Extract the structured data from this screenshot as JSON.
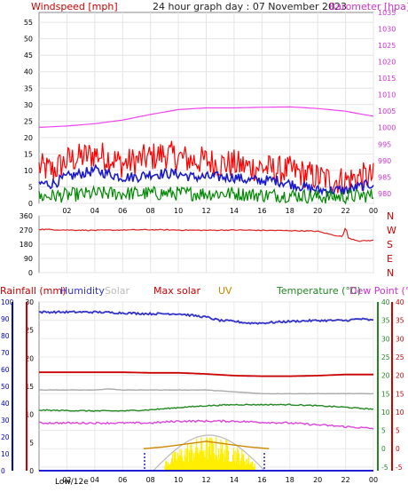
{
  "header": {
    "left_label": "Windspeed [mph]",
    "title": "24 hour graph day : 07 November 2023",
    "right_label": "Barometer [hpa]"
  },
  "legend2": {
    "rainfall": "Rainfall (mm)",
    "humidity": "Humidity",
    "solar": "Solar",
    "max_solar": "Max solar",
    "uv": "UV",
    "temperature": "Temperature (°C)",
    "dew_point": "Dew Point (°C)"
  },
  "footer": {
    "label": "Low/12e"
  },
  "colors": {
    "wind_axis": "#cc0000",
    "baro": "#ee44ee",
    "gust": "#ff0000",
    "average": "#1a1acc",
    "lull": "#008800",
    "direction": "#dd2222",
    "humidity": "#3333cc",
    "max_solar": "#cc0000",
    "solar": "#aaaaaa",
    "uv": "#cc8800",
    "temperature": "#228822",
    "dew_point": "#dd44dd",
    "rain_axis": "#0000cc"
  },
  "chart_data": [
    {
      "type": "line",
      "title": "24 hour graph day : 07 November 2023",
      "ylabel": "Windspeed [mph]",
      "ylabel_right": "Barometer [hpa]",
      "ylim": [
        0,
        58
      ],
      "yticks": [
        0,
        5,
        10,
        15,
        20,
        25,
        30,
        35,
        40,
        45,
        50,
        55
      ],
      "ylim_right": [
        977,
        1035
      ],
      "yticks_right": [
        980,
        985,
        990,
        995,
        1000,
        1005,
        1010,
        1015,
        1020,
        1025,
        1030,
        1035
      ],
      "x_hours": [
        0,
        24
      ],
      "xtick_labels": [
        "02",
        "04",
        "06",
        "08",
        "10",
        "12",
        "14",
        "16",
        "18",
        "20",
        "22",
        "00"
      ],
      "series": [
        {
          "name": "Barometer",
          "axis": "right",
          "x": [
            0,
            2,
            4,
            6,
            8,
            10,
            12,
            14,
            16,
            18,
            19,
            20,
            22,
            23,
            24
          ],
          "y": [
            1000.1,
            1000.5,
            1001.2,
            1002.3,
            1004,
            1005.5,
            1006,
            1006,
            1006.2,
            1006.3,
            1006.1,
            1005.8,
            1005,
            1004.2,
            1003.5
          ]
        },
        {
          "name": "Gust",
          "axis": "left",
          "x": [
            0,
            1,
            2,
            3,
            4,
            5,
            6,
            7,
            8,
            9,
            10,
            11,
            12,
            13,
            14,
            15,
            16,
            17,
            18,
            19,
            20,
            21,
            22,
            23,
            24
          ],
          "y": [
            11,
            10,
            13,
            14,
            15,
            14,
            12,
            13,
            14,
            15,
            14,
            13,
            13,
            12,
            12,
            11,
            11,
            10,
            10,
            9,
            8,
            7,
            7,
            8,
            8
          ]
        },
        {
          "name": "Average",
          "axis": "left",
          "x": [
            0,
            1,
            2,
            3,
            4,
            5,
            6,
            7,
            8,
            9,
            10,
            11,
            12,
            13,
            14,
            15,
            16,
            17,
            18,
            19,
            20,
            21,
            22,
            23,
            24
          ],
          "y": [
            6,
            6,
            8,
            9,
            10,
            9,
            8,
            8,
            9,
            9,
            9,
            8,
            8,
            8,
            8,
            7,
            7,
            7,
            6,
            5,
            4,
            4,
            4,
            5,
            6
          ]
        },
        {
          "name": "Lull",
          "axis": "left",
          "x": [
            0,
            2,
            4,
            6,
            8,
            10,
            12,
            14,
            16,
            18,
            20,
            22,
            24
          ],
          "y": [
            2,
            2.5,
            3,
            3,
            3,
            3,
            3,
            3,
            2.5,
            2.5,
            2,
            2,
            2.5
          ]
        }
      ]
    },
    {
      "type": "line",
      "ylabel": "Wind direction",
      "ylim": [
        0,
        360
      ],
      "yticks": [
        0,
        90,
        180,
        270,
        360
      ],
      "direction_labels": [
        "N",
        "W",
        "S",
        "E",
        "N"
      ],
      "x_hours": [
        0,
        24
      ],
      "series": [
        {
          "name": "Direction",
          "x": [
            0,
            2,
            4,
            6,
            8,
            10,
            12,
            14,
            16,
            18,
            20,
            21,
            21.8,
            22,
            22.2,
            23,
            24
          ],
          "y": [
            275,
            270,
            268,
            270,
            272,
            270,
            268,
            270,
            268,
            266,
            262,
            240,
            228,
            295,
            220,
            200,
            205
          ]
        }
      ]
    },
    {
      "type": "line",
      "ylabel": "Temperature (°C)",
      "ylim": [
        -6,
        40
      ],
      "yticks": [
        -5,
        0,
        5,
        10,
        15,
        20,
        25,
        30,
        35,
        40
      ],
      "ylim_rain": [
        0,
        30
      ],
      "yticks_rain": [
        0,
        5,
        10,
        15,
        20,
        25,
        30
      ],
      "ylim_humidity": [
        0,
        100
      ],
      "yticks_humidity": [
        0,
        10,
        20,
        30,
        40,
        50,
        60,
        70,
        80,
        90,
        100
      ],
      "x_hours": [
        0,
        24
      ],
      "xtick_labels": [
        "02",
        "04",
        "06",
        "08",
        "10",
        "12",
        "14",
        "16",
        "18",
        "20",
        "22",
        "00"
      ],
      "series": [
        {
          "name": "Humidity",
          "axis": "humidity",
          "x": [
            0,
            2,
            4,
            6,
            8,
            10,
            12,
            13,
            14,
            15,
            16,
            18,
            20,
            22,
            23,
            24
          ],
          "y": [
            94,
            94,
            94,
            93.5,
            93,
            93,
            91,
            89,
            88.5,
            87.5,
            87.5,
            88.5,
            89,
            89,
            90,
            89
          ]
        },
        {
          "name": "Temperature",
          "axis": "temperature",
          "x": [
            0,
            2,
            4,
            6,
            8,
            10,
            12,
            14,
            16,
            18,
            20,
            22,
            23,
            24
          ],
          "y": [
            10.5,
            10.4,
            10.3,
            10.3,
            10.6,
            11.2,
            11.7,
            12,
            12,
            12,
            11.7,
            11.3,
            11,
            10.8
          ]
        },
        {
          "name": "Dew Point",
          "axis": "temperature",
          "x": [
            0,
            2,
            4,
            6,
            8,
            10,
            12,
            14,
            16,
            18,
            20,
            22,
            24
          ],
          "y": [
            7,
            7,
            7,
            7,
            7,
            7.5,
            7.5,
            7.5,
            7.2,
            7,
            6.5,
            6,
            5.5
          ]
        },
        {
          "name": "Solar",
          "axis": "temperature",
          "x": [
            0,
            2,
            4,
            5,
            6,
            8,
            10,
            12,
            14,
            16,
            18,
            20,
            22,
            24
          ],
          "y": [
            16,
            16,
            16,
            16.3,
            16,
            16,
            16,
            16,
            15.5,
            15,
            15,
            15,
            15,
            15
          ]
        },
        {
          "name": "Max solar",
          "axis": "rain",
          "x": [
            0,
            2,
            4,
            6,
            8,
            10,
            12,
            14,
            16,
            18,
            20,
            22,
            24
          ],
          "y": [
            17.5,
            17.5,
            17.5,
            17.5,
            17.4,
            17.4,
            17.2,
            16.9,
            16.8,
            16.8,
            16.9,
            17.1,
            17.1
          ]
        },
        {
          "name": "Rainfall",
          "axis": "rain",
          "x": [
            0,
            24
          ],
          "y": [
            0,
            0
          ]
        },
        {
          "name": "UV",
          "axis": "temperature",
          "x": [
            7.5,
            9,
            10,
            11,
            12,
            13,
            14,
            15,
            16.5
          ],
          "y": [
            0,
            0.5,
            1,
            1.5,
            2,
            1.5,
            1,
            0.5,
            0
          ]
        }
      ]
    }
  ]
}
